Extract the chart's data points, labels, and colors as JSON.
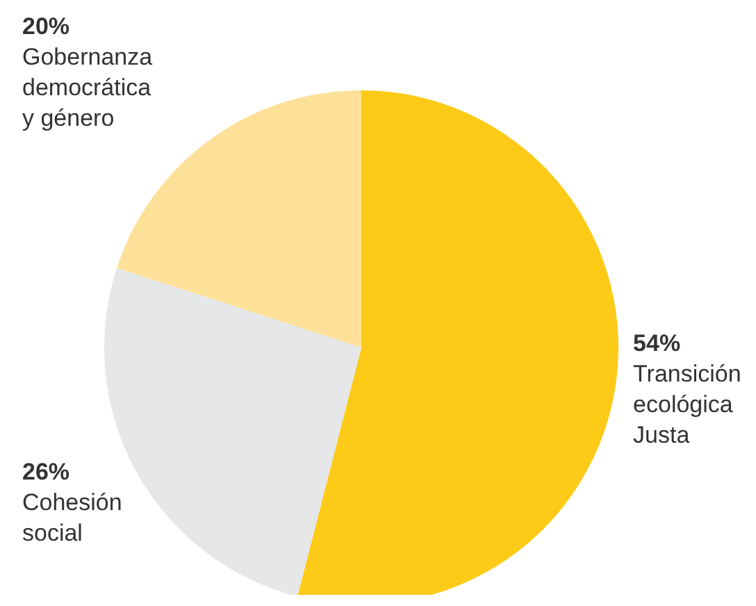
{
  "chart_data": {
    "type": "pie",
    "categories": [
      "Transición ecológica Justa",
      "Cohesión social",
      "Gobernanza democrática y género"
    ],
    "values": [
      54,
      26,
      20
    ],
    "value_labels": [
      "54%",
      "26%",
      "20%"
    ],
    "colors": [
      "#fdca18",
      "#e6e7e8",
      "#fde198"
    ]
  }
}
